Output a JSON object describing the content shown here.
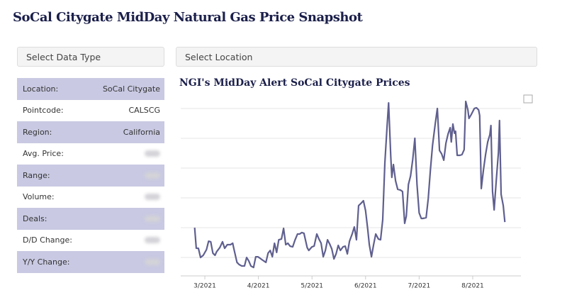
{
  "header": {
    "title": "SoCal Citygate MidDay Natural Gas Price Snapshot"
  },
  "controls": {
    "data_type": "Select Data Type",
    "location": "Select Location"
  },
  "info": {
    "rows": [
      {
        "label": "Location:",
        "value": "SoCal Citygate"
      },
      {
        "label": "Pointcode:",
        "value": "CALSCG"
      },
      {
        "label": "Region:",
        "value": "California"
      },
      {
        "label": "Avg. Price:"
      },
      {
        "label": "Range:"
      },
      {
        "label": "Volume:"
      },
      {
        "label": "Deals:"
      },
      {
        "label": "D/D Change:"
      },
      {
        "label": "Y/Y Change:"
      }
    ]
  },
  "chart_data": {
    "type": "line",
    "title": "NGI's MidDay Alert SoCal Citygate Prices",
    "color": "#5f5f8f",
    "xlim": [
      2.55,
      8.9
    ],
    "ylim": [
      0,
      100
    ],
    "grid": true,
    "xticks": [
      {
        "value": 3,
        "label": "3/2021"
      },
      {
        "value": 4,
        "label": "4/2021"
      },
      {
        "value": 5,
        "label": "5/2021"
      },
      {
        "value": 6,
        "label": "6/2021"
      },
      {
        "value": 7,
        "label": "7/2021"
      },
      {
        "value": 8,
        "label": "8/2021"
      }
    ],
    "x": [
      2.81,
      2.84,
      2.88,
      2.92,
      2.97,
      3.03,
      3.07,
      3.11,
      3.15,
      3.19,
      3.22,
      3.28,
      3.33,
      3.37,
      3.42,
      3.48,
      3.52,
      3.54,
      3.6,
      3.64,
      3.69,
      3.74,
      3.78,
      3.82,
      3.86,
      3.91,
      3.95,
      3.99,
      4.03,
      4.08,
      4.14,
      4.18,
      4.22,
      4.26,
      4.3,
      4.34,
      4.38,
      4.43,
      4.47,
      4.51,
      4.55,
      4.59,
      4.64,
      4.68,
      4.73,
      4.77,
      4.81,
      4.85,
      4.91,
      4.94,
      5.0,
      5.04,
      5.09,
      5.13,
      5.17,
      5.21,
      5.25,
      5.29,
      5.33,
      5.37,
      5.41,
      5.45,
      5.49,
      5.53,
      5.58,
      5.62,
      5.66,
      5.7,
      5.75,
      5.79,
      5.83,
      5.87,
      5.91,
      5.96,
      6.0,
      6.04,
      6.07,
      6.11,
      6.15,
      6.19,
      6.24,
      6.28,
      6.32,
      6.36,
      6.4,
      6.43,
      6.47,
      6.49,
      6.52,
      6.56,
      6.6,
      6.65,
      6.69,
      6.73,
      6.76,
      6.8,
      6.84,
      6.88,
      6.92,
      6.96,
      7.0,
      7.04,
      7.07,
      7.13,
      7.17,
      7.21,
      7.25,
      7.3,
      7.34,
      7.38,
      7.42,
      7.46,
      7.5,
      7.54,
      7.58,
      7.6,
      7.63,
      7.66,
      7.68,
      7.71,
      7.76,
      7.8,
      7.84,
      7.87,
      7.91,
      7.93,
      7.97,
      8.03,
      8.07,
      8.11,
      8.13,
      8.16,
      8.2,
      8.24,
      8.28,
      8.32,
      8.34,
      8.37,
      8.4,
      8.44,
      8.48,
      8.5,
      8.53,
      8.57,
      8.6
    ],
    "values": [
      25.1,
      13.7,
      13.7,
      8.6,
      9.8,
      12.9,
      17.6,
      17.3,
      11.0,
      9.8,
      11.8,
      14.1,
      17.3,
      13.7,
      15.7,
      15.7,
      16.5,
      13.7,
      5.9,
      4.7,
      3.9,
      3.9,
      8.6,
      6.7,
      3.9,
      3.1,
      9.0,
      9.0,
      8.2,
      7.1,
      5.9,
      11.0,
      12.5,
      9.0,
      16.5,
      11.4,
      18.4,
      18.8,
      24.7,
      15.7,
      16.5,
      14.9,
      14.5,
      18.0,
      21.6,
      21.6,
      22.4,
      22.0,
      14.1,
      12.5,
      14.5,
      14.9,
      21.6,
      18.8,
      16.5,
      9.0,
      12.5,
      18.4,
      16.1,
      13.3,
      7.8,
      10.6,
      15.3,
      12.5,
      14.5,
      14.9,
      10.6,
      17.6,
      21.6,
      25.5,
      18.4,
      37.3,
      38.4,
      40.0,
      34.5,
      24.3,
      15.7,
      9.0,
      15.7,
      21.6,
      18.8,
      18.4,
      29.4,
      60.8,
      80.4,
      94.1,
      64.7,
      52.9,
      60.0,
      51.0,
      46.3,
      45.9,
      45.1,
      27.5,
      31.4,
      49.0,
      53.7,
      62.7,
      74.5,
      49.0,
      33.3,
      30.2,
      30.2,
      30.6,
      41.2,
      56.9,
      70.6,
      82.4,
      91.0,
      67.8,
      65.9,
      62.4,
      71.8,
      76.9,
      80.4,
      72.5,
      82.4,
      77.3,
      78.4,
      65.1,
      65.1,
      65.5,
      68.2,
      94.9,
      90.2,
      85.5,
      87.5,
      91.0,
      91.4,
      90.2,
      87.1,
      46.7,
      56.9,
      65.5,
      72.5,
      76.5,
      81.6,
      45.1,
      34.9,
      51.4,
      66.7,
      84.3,
      43.5,
      37.3,
      28.2
    ]
  }
}
